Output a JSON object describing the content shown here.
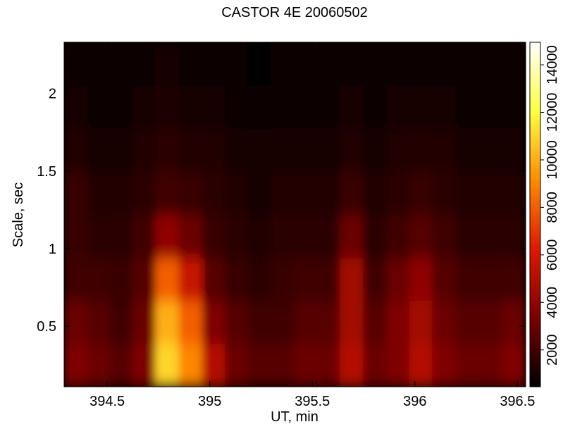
{
  "chart_data": {
    "type": "heatmap",
    "title": "CASTOR 4E 20060502",
    "xlabel": "UT, min",
    "ylabel": "Scale, sec",
    "x": [
      394.35,
      394.46,
      394.57,
      394.68,
      394.79,
      394.91,
      395.02,
      395.13,
      395.24,
      395.36,
      395.47,
      395.58,
      395.69,
      395.81,
      395.92,
      396.03,
      396.14,
      396.26,
      396.37,
      396.48
    ],
    "y": [
      0.25,
      0.53,
      0.8,
      1.08,
      1.36,
      1.64,
      1.91,
      2.19
    ],
    "z": [
      [
        3500,
        3000,
        2500,
        3500,
        11000,
        9000,
        5000,
        3000,
        2500,
        2500,
        3000,
        3000,
        5000,
        3000,
        3500,
        5000,
        3500,
        3000,
        3000,
        3500
      ],
      [
        3000,
        2500,
        2000,
        3000,
        10000,
        8000,
        3500,
        2500,
        2000,
        2000,
        2500,
        2500,
        4500,
        2500,
        3500,
        4500,
        3000,
        2500,
        2500,
        3000
      ],
      [
        2000,
        2000,
        1800,
        2500,
        8000,
        5500,
        2500,
        1800,
        1500,
        1800,
        2000,
        2000,
        4500,
        2000,
        3000,
        4000,
        2500,
        2000,
        2000,
        2000
      ],
      [
        1800,
        1500,
        1500,
        2000,
        4000,
        3000,
        1800,
        1500,
        1200,
        1500,
        1500,
        1500,
        3000,
        1500,
        2000,
        2500,
        2000,
        1500,
        1500,
        1500
      ],
      [
        1800,
        1200,
        1200,
        1500,
        2000,
        1800,
        1500,
        1200,
        1000,
        1200,
        1200,
        1200,
        1800,
        1200,
        1500,
        1800,
        1500,
        1200,
        1200,
        1200
      ],
      [
        1200,
        1000,
        1000,
        1200,
        1500,
        1300,
        1200,
        1000,
        900,
        1000,
        1000,
        1000,
        1300,
        1000,
        1200,
        1300,
        1200,
        1000,
        1000,
        1000
      ],
      [
        900,
        800,
        800,
        900,
        1100,
        1000,
        900,
        800,
        700,
        800,
        800,
        800,
        1000,
        800,
        900,
        1000,
        900,
        800,
        800,
        800
      ],
      [
        800,
        700,
        700,
        800,
        900,
        800,
        800,
        700,
        600,
        700,
        700,
        700,
        800,
        700,
        800,
        800,
        800,
        700,
        700,
        700
      ]
    ],
    "xlim": [
      394.29,
      396.54
    ],
    "ylim": [
      0.11,
      2.33
    ],
    "zlim": [
      450,
      14950
    ],
    "xticks": [
      394.5,
      395,
      395.5,
      396,
      396.5
    ],
    "yticks": [
      0.5,
      1,
      1.5,
      2
    ],
    "zticks": [
      2000,
      4000,
      6000,
      8000,
      10000,
      12000,
      14000
    ],
    "colormap": [
      "#000000",
      "#7a0000",
      "#e01800",
      "#ff8c00",
      "#ffff40",
      "#ffffff"
    ]
  }
}
